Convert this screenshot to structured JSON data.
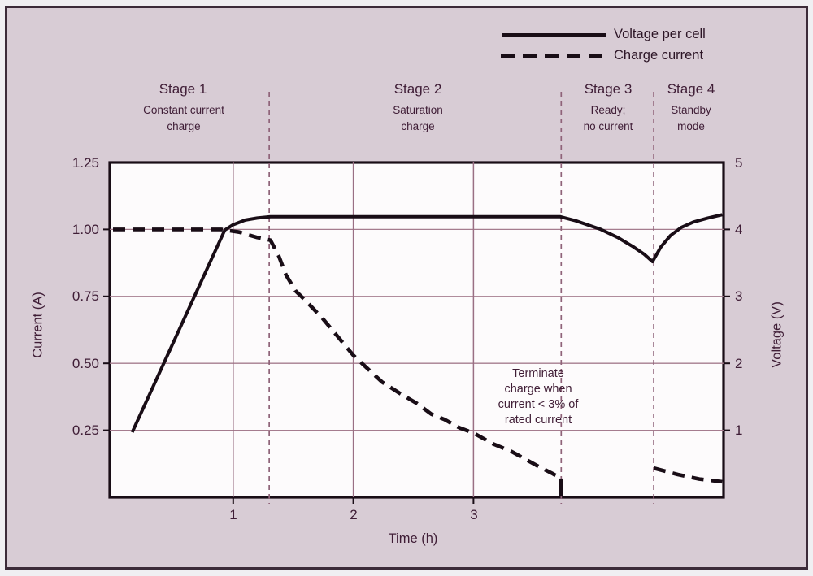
{
  "chart_data": {
    "type": "line",
    "xlabel": "Time (h)",
    "ylabel_left": "Current (A)",
    "ylabel_right": "Voltage (V)",
    "x_ticks": [
      "1",
      "2",
      "3"
    ],
    "x_range": [
      0,
      5.07
    ],
    "y_left_ticks": [
      "1.25",
      "1.00",
      "0.75",
      "0.50",
      "0.25"
    ],
    "y_left_range": [
      0,
      1.25
    ],
    "y_right_ticks": [
      "5",
      "4",
      "3",
      "2",
      "1"
    ],
    "y_right_range": [
      0,
      5
    ],
    "grid": true,
    "legend_position": "top-right",
    "legend": [
      {
        "label": "Voltage per cell",
        "line": "solid"
      },
      {
        "label": "Charge current",
        "line": "dashed"
      }
    ],
    "stage_boundaries_t": [
      1.3,
      3.73,
      4.5
    ],
    "stages": [
      {
        "title": "Stage 1",
        "desc": "Constant current\ncharge"
      },
      {
        "title": "Stage 2",
        "desc": "Saturation\ncharge"
      },
      {
        "title": "Stage 3",
        "desc": "Ready;\nno current"
      },
      {
        "title": "Stage 4",
        "desc": "Standby\nmode"
      }
    ],
    "annotation": "Terminate\ncharge when\ncurrent < 3% of\nrated current",
    "series": [
      {
        "name": "Voltage per cell",
        "axis": "right",
        "style": "solid",
        "points": [
          [
            0.16,
            0.97
          ],
          [
            0.93,
            3.99
          ],
          [
            1.0,
            4.07
          ],
          [
            1.1,
            4.14
          ],
          [
            1.2,
            4.17
          ],
          [
            1.31,
            4.19
          ],
          [
            2.0,
            4.19
          ],
          [
            3.0,
            4.19
          ],
          [
            3.72,
            4.19
          ],
          [
            3.85,
            4.13
          ],
          [
            4.06,
            4.0
          ],
          [
            4.2,
            3.88
          ],
          [
            4.33,
            3.74
          ],
          [
            4.42,
            3.63
          ],
          [
            4.49,
            3.52
          ],
          [
            4.56,
            3.74
          ],
          [
            4.64,
            3.91
          ],
          [
            4.73,
            4.03
          ],
          [
            4.83,
            4.11
          ],
          [
            4.95,
            4.17
          ],
          [
            5.07,
            4.22
          ]
        ]
      },
      {
        "name": "Charge current",
        "axis": "left",
        "style": "dashed",
        "segments": [
          [
            [
              0.0,
              1.0
            ],
            [
              0.9,
              1.0
            ],
            [
              1.05,
              0.99
            ],
            [
              1.2,
              0.97
            ],
            [
              1.31,
              0.96
            ],
            [
              1.38,
              0.9
            ],
            [
              1.44,
              0.83
            ],
            [
              1.52,
              0.77
            ],
            [
              1.59,
              0.74
            ],
            [
              1.74,
              0.67
            ],
            [
              1.87,
              0.6
            ],
            [
              2.0,
              0.53
            ],
            [
              2.12,
              0.48
            ],
            [
              2.24,
              0.43
            ],
            [
              2.38,
              0.39
            ],
            [
              2.53,
              0.35
            ],
            [
              2.65,
              0.31
            ],
            [
              2.76,
              0.29
            ],
            [
              2.88,
              0.26
            ],
            [
              3.0,
              0.24
            ],
            [
              3.16,
              0.2
            ],
            [
              3.32,
              0.17
            ],
            [
              3.52,
              0.12
            ],
            [
              3.65,
              0.09
            ],
            [
              3.73,
              0.07
            ]
          ],
          [
            [
              4.5,
              0.109
            ],
            [
              4.7,
              0.085
            ],
            [
              4.88,
              0.068
            ],
            [
              5.07,
              0.058
            ]
          ]
        ],
        "termination_drop": {
          "t": 3.73,
          "from_a": 0.07,
          "to_a": 0.0
        }
      }
    ],
    "colors": {
      "panel_bg": "#d8ccd5",
      "plot_bg": "#fdfbfc",
      "frame": "#190d16",
      "curve": "#190d16",
      "grid_h": "#a57c8e",
      "grid_v": "#9a6f84",
      "stage_dash": "#8f6379",
      "text": "#3f1d36"
    }
  }
}
